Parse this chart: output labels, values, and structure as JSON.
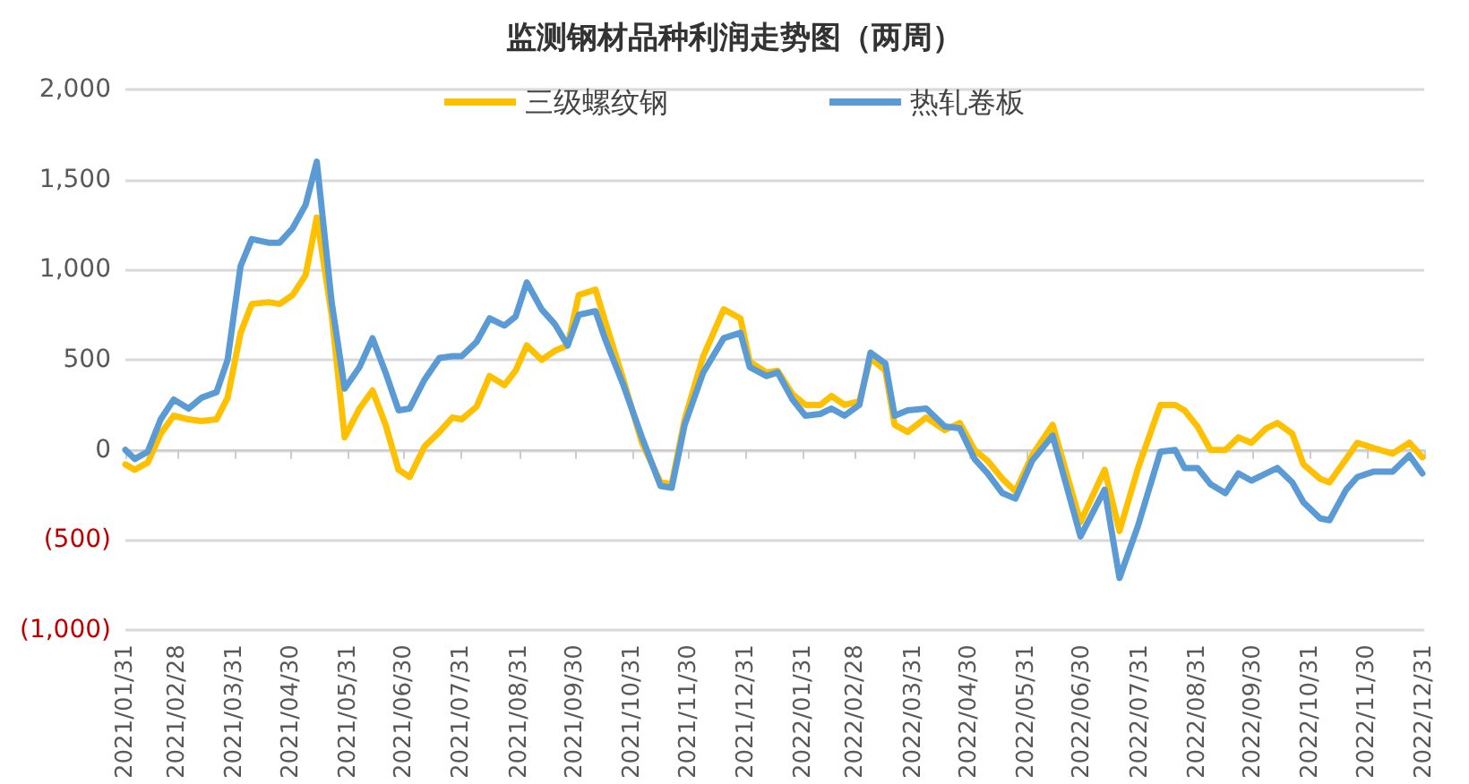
{
  "chart_data": {
    "type": "line",
    "title": "监测钢材品种利润走势图（两周）",
    "x": [
      "2021-01-31",
      "2021-02-05",
      "2021-02-12",
      "2021-02-19",
      "2021-02-26",
      "2021-03-06",
      "2021-03-13",
      "2021-03-21",
      "2021-03-27",
      "2021-04-03",
      "2021-04-09",
      "2021-04-18",
      "2021-04-24",
      "2021-05-01",
      "2021-05-08",
      "2021-05-14",
      "2021-05-22",
      "2021-05-29",
      "2021-06-06",
      "2021-06-13",
      "2021-06-20",
      "2021-06-27",
      "2021-07-03",
      "2021-07-11",
      "2021-07-19",
      "2021-07-26",
      "2021-07-31",
      "2021-08-08",
      "2021-08-15",
      "2021-08-23",
      "2021-08-29",
      "2021-09-04",
      "2021-09-12",
      "2021-09-19",
      "2021-09-26",
      "2021-10-02",
      "2021-10-11",
      "2021-10-16",
      "2021-10-26",
      "2021-11-05",
      "2021-11-15",
      "2021-11-21",
      "2021-11-28",
      "2021-12-08",
      "2021-12-19",
      "2021-12-28",
      "2022-01-02",
      "2022-01-11",
      "2022-01-17",
      "2022-01-25",
      "2022-02-01",
      "2022-02-09",
      "2022-02-15",
      "2022-02-22",
      "2022-03-02",
      "2022-03-08",
      "2022-03-16",
      "2022-03-21",
      "2022-03-28",
      "2022-04-07",
      "2022-04-17",
      "2022-04-25",
      "2022-05-03",
      "2022-05-10",
      "2022-05-18",
      "2022-05-25",
      "2022-06-03",
      "2022-06-14",
      "2022-06-29",
      "2022-07-12",
      "2022-07-20",
      "2022-07-30",
      "2022-08-11",
      "2022-08-19",
      "2022-08-24",
      "2022-08-31",
      "2022-09-07",
      "2022-09-15",
      "2022-09-22",
      "2022-09-29",
      "2022-10-07",
      "2022-10-13",
      "2022-10-21",
      "2022-10-27",
      "2022-11-05",
      "2022-11-10",
      "2022-11-19",
      "2022-11-25",
      "2022-12-04",
      "2022-12-14",
      "2022-12-23",
      "2022-12-30"
    ],
    "series": [
      {
        "name": "三级螺纹钢",
        "color": "#ffc000",
        "values": [
          -80,
          -110,
          -70,
          90,
          190,
          170,
          160,
          170,
          290,
          650,
          810,
          820,
          810,
          860,
          970,
          1290,
          750,
          70,
          230,
          330,
          140,
          -110,
          -150,
          20,
          100,
          180,
          170,
          240,
          410,
          360,
          440,
          580,
          500,
          550,
          580,
          860,
          890,
          720,
          390,
          40,
          -180,
          -190,
          170,
          520,
          780,
          730,
          490,
          430,
          440,
          310,
          250,
          250,
          300,
          250,
          270,
          510,
          440,
          140,
          100,
          180,
          110,
          150,
          0,
          -60,
          -160,
          -230,
          -30,
          140,
          -400,
          -110,
          -450,
          -100,
          250,
          250,
          220,
          130,
          0,
          0,
          70,
          40,
          120,
          150,
          90,
          -80,
          -160,
          -180,
          -50,
          40,
          10,
          -20,
          40,
          -40
        ]
      },
      {
        "name": "热轧卷板",
        "color": "#5b9bd5",
        "values": [
          0,
          -50,
          -10,
          170,
          280,
          230,
          290,
          320,
          500,
          1020,
          1170,
          1150,
          1150,
          1230,
          1360,
          1600,
          820,
          340,
          460,
          620,
          430,
          220,
          230,
          390,
          510,
          520,
          520,
          600,
          730,
          690,
          740,
          930,
          780,
          700,
          580,
          750,
          770,
          620,
          360,
          70,
          -200,
          -210,
          140,
          430,
          620,
          650,
          460,
          410,
          430,
          280,
          190,
          200,
          230,
          190,
          250,
          540,
          480,
          190,
          220,
          230,
          130,
          120,
          -50,
          -130,
          -240,
          -270,
          -60,
          80,
          -480,
          -220,
          -710,
          -420,
          -10,
          0,
          -100,
          -100,
          -190,
          -240,
          -130,
          -170,
          -130,
          -100,
          -180,
          -290,
          -380,
          -390,
          -220,
          -150,
          -120,
          -120,
          -30,
          -130
        ]
      }
    ],
    "xlim": [
      "2021-01-31",
      "2022-12-31"
    ],
    "xticks": [
      {
        "value": "2021-01-31",
        "label": "2021/01/31"
      },
      {
        "value": "2021-02-28",
        "label": "2021/02/28"
      },
      {
        "value": "2021-03-31",
        "label": "2021/03/31"
      },
      {
        "value": "2021-04-30",
        "label": "2021/04/30"
      },
      {
        "value": "2021-05-31",
        "label": "2021/05/31"
      },
      {
        "value": "2021-06-30",
        "label": "2021/06/30"
      },
      {
        "value": "2021-07-31",
        "label": "2021/07/31"
      },
      {
        "value": "2021-08-31",
        "label": "2021/08/31"
      },
      {
        "value": "2021-09-30",
        "label": "2021/09/30"
      },
      {
        "value": "2021-10-31",
        "label": "2021/10/31"
      },
      {
        "value": "2021-11-30",
        "label": "2021/11/30"
      },
      {
        "value": "2021-12-31",
        "label": "2021/12/31"
      },
      {
        "value": "2022-01-31",
        "label": "2022/01/31"
      },
      {
        "value": "2022-02-28",
        "label": "2022/02/28"
      },
      {
        "value": "2022-03-31",
        "label": "2022/03/31"
      },
      {
        "value": "2022-04-30",
        "label": "2022/04/30"
      },
      {
        "value": "2022-05-31",
        "label": "2022/05/31"
      },
      {
        "value": "2022-06-30",
        "label": "2022/06/30"
      },
      {
        "value": "2022-07-31",
        "label": "2022/07/31"
      },
      {
        "value": "2022-08-31",
        "label": "2022/08/31"
      },
      {
        "value": "2022-09-30",
        "label": "2022/09/30"
      },
      {
        "value": "2022-10-31",
        "label": "2022/10/31"
      },
      {
        "value": "2022-11-30",
        "label": "2022/11/30"
      },
      {
        "value": "2022-12-31",
        "label": "2022/12/31"
      }
    ],
    "ylim": [
      -1000,
      2000
    ],
    "yticks": [
      {
        "value": -1000,
        "label": "(1,000)"
      },
      {
        "value": -500,
        "label": "(500)"
      },
      0,
      {
        "value": 500,
        "label": "500"
      },
      {
        "value": 1000,
        "label": "1,000"
      },
      {
        "value": 1500,
        "label": "1,500"
      },
      {
        "value": 2000,
        "label": "2,000"
      }
    ],
    "grid": "y",
    "legend": "top",
    "marker": "none",
    "line_style": "solid"
  }
}
